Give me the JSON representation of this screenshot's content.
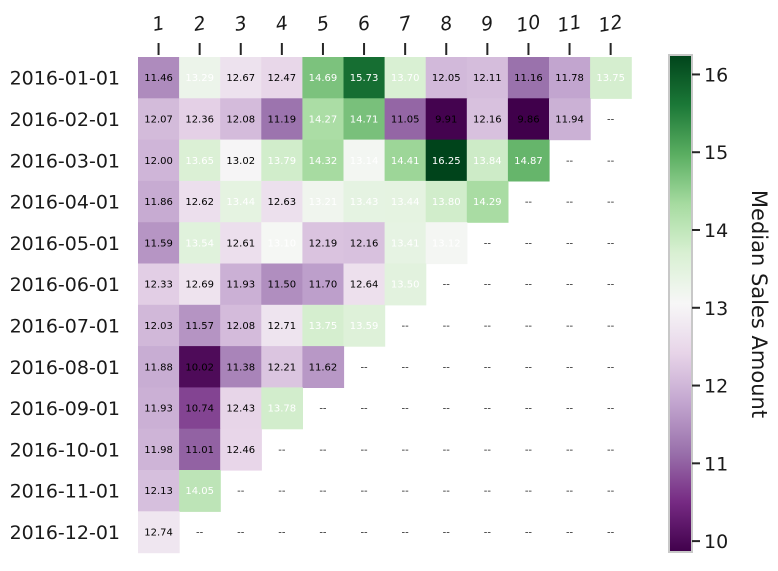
{
  "chart_data": {
    "type": "heatmap",
    "title": "",
    "xlabel": "",
    "ylabel": "",
    "colorbar_label": "Median Sales Amount",
    "colorbar_ticks": [
      10,
      11,
      12,
      13,
      14,
      15,
      16
    ],
    "color_range": [
      9.86,
      16.25
    ],
    "colormap": "PRGn",
    "colors": {
      "low": "#40004b",
      "mid": "#f7f7f7",
      "high": "#00441b"
    },
    "columns": [
      "1",
      "2",
      "3",
      "4",
      "5",
      "6",
      "7",
      "8",
      "9",
      "10",
      "11",
      "12"
    ],
    "rows": [
      "2016-01-01",
      "2016-02-01",
      "2016-03-01",
      "2016-04-01",
      "2016-05-01",
      "2016-06-01",
      "2016-07-01",
      "2016-08-01",
      "2016-09-01",
      "2016-10-01",
      "2016-11-01",
      "2016-12-01"
    ],
    "missing_label": "--",
    "values": [
      [
        11.46,
        13.29,
        12.67,
        12.47,
        14.69,
        15.73,
        13.7,
        12.05,
        12.11,
        11.16,
        11.78,
        13.75
      ],
      [
        12.07,
        12.36,
        12.08,
        11.19,
        14.27,
        14.71,
        11.05,
        9.91,
        12.16,
        9.86,
        11.94,
        null
      ],
      [
        12.0,
        13.65,
        13.02,
        13.79,
        14.32,
        13.14,
        14.41,
        16.25,
        13.84,
        14.87,
        null,
        null
      ],
      [
        11.86,
        12.62,
        13.44,
        12.63,
        13.21,
        13.43,
        13.44,
        13.8,
        14.29,
        null,
        null,
        null
      ],
      [
        11.59,
        13.54,
        12.61,
        13.1,
        12.19,
        12.16,
        13.41,
        13.12,
        null,
        null,
        null,
        null
      ],
      [
        12.33,
        12.69,
        11.93,
        11.5,
        11.7,
        12.64,
        13.5,
        null,
        null,
        null,
        null,
        null
      ],
      [
        12.03,
        11.57,
        12.08,
        12.71,
        13.75,
        13.59,
        null,
        null,
        null,
        null,
        null,
        null
      ],
      [
        11.88,
        10.02,
        11.38,
        12.21,
        11.62,
        null,
        null,
        null,
        null,
        null,
        null,
        null
      ],
      [
        11.93,
        10.74,
        12.43,
        13.78,
        null,
        null,
        null,
        null,
        null,
        null,
        null,
        null
      ],
      [
        11.98,
        11.01,
        12.46,
        null,
        null,
        null,
        null,
        null,
        null,
        null,
        null,
        null
      ],
      [
        12.13,
        14.05,
        null,
        null,
        null,
        null,
        null,
        null,
        null,
        null,
        null,
        null
      ],
      [
        12.74,
        null,
        null,
        null,
        null,
        null,
        null,
        null,
        null,
        null,
        null,
        null
      ]
    ]
  }
}
